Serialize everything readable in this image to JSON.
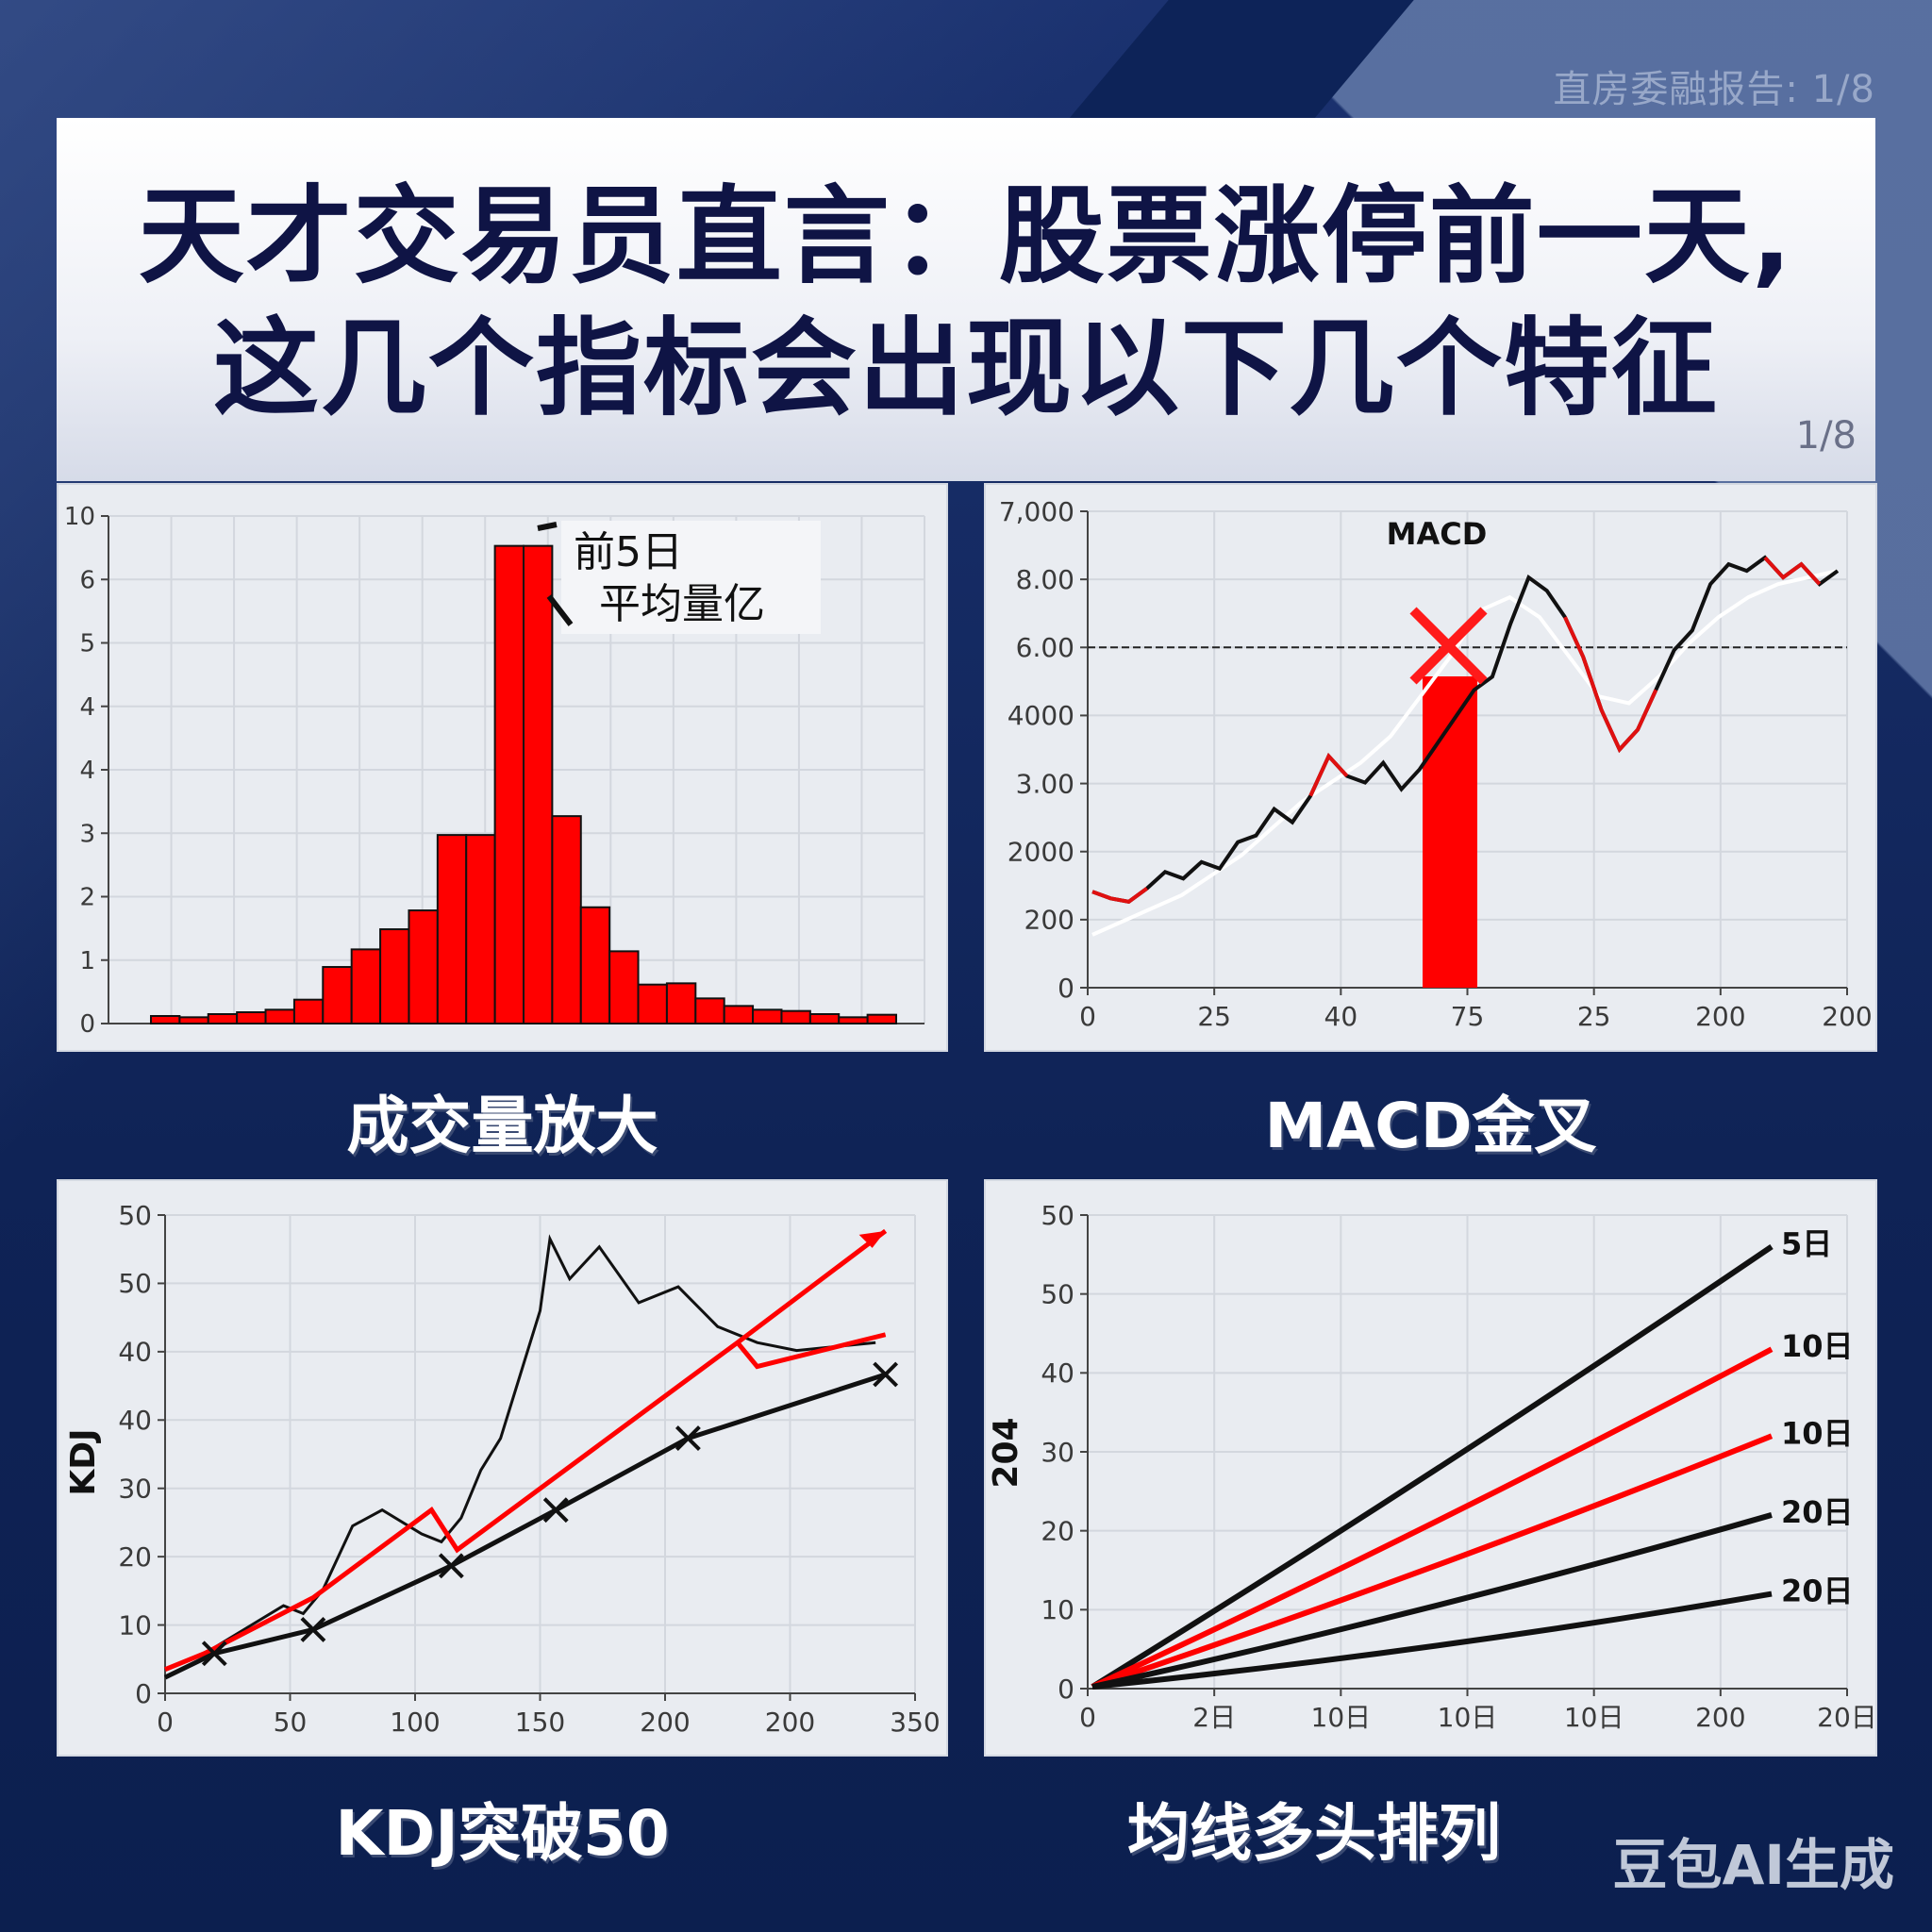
{
  "header": {
    "tag": "直房委融报告: 1/8",
    "title_line1": "天才交易员直言：股票涨停前一天,",
    "title_line2": "这几个指标会出现以下几个特征",
    "page": "1/8"
  },
  "captions": {
    "volume": "成交量放大",
    "macd": "MACD金叉",
    "kdj": "KDJ突破50",
    "ma": "均线多头排列"
  },
  "watermark": "豆包AI生成",
  "colors": {
    "background": "#14275a",
    "title": "#0f1445",
    "red": "#ff0000",
    "black": "#111111",
    "panel": "#e9ecf1"
  },
  "chart_data": [
    {
      "id": "volume",
      "type": "bar",
      "title": "成交量放大",
      "annotation": [
        "前5日",
        "平均量亿"
      ],
      "yticks": [
        "10",
        "6",
        "5",
        "4",
        "4",
        "3",
        "2",
        "1",
        "0"
      ],
      "ylim": [
        0,
        8
      ],
      "grid": true,
      "values": [
        0.12,
        0.1,
        0.15,
        0.18,
        0.22,
        0.38,
        0.9,
        1.18,
        1.5,
        1.8,
        3.0,
        3.0,
        7.6,
        7.6,
        3.3,
        1.85,
        1.15,
        0.62,
        0.64,
        0.4,
        0.28,
        0.22,
        0.2,
        0.15,
        0.1,
        0.14
      ],
      "bar_color": "#ff0000"
    },
    {
      "id": "macd",
      "type": "line",
      "title": "MACD",
      "yticks": [
        "7,000",
        "8.00",
        "6.00",
        "4000",
        "3.00",
        "2000",
        "200",
        "0"
      ],
      "xticks": [
        "0",
        "25",
        "40",
        "75",
        "25",
        "200",
        "200"
      ],
      "reference_line": "6.00",
      "highlight_bar": {
        "x_label": "75",
        "height_label": "≈4500",
        "color": "#ff0000"
      },
      "cross_marker": {
        "x_label": "75",
        "y_label": "6.00"
      },
      "price_series": [
        1450,
        1350,
        1300,
        1500,
        1750,
        1650,
        1900,
        1800,
        2200,
        2300,
        2700,
        2500,
        2900,
        3500,
        3200,
        3100,
        3400,
        3000,
        3300,
        3700,
        4100,
        4500,
        4700,
        5500,
        6200,
        6000,
        5600,
        5000,
        4200,
        3600,
        3900,
        4500,
        5100,
        5400,
        6100,
        6400,
        6300,
        6500,
        6200,
        6400,
        6100,
        6300
      ],
      "ma_series": [
        800,
        1000,
        1200,
        1400,
        1700,
        2000,
        2400,
        2800,
        3100,
        3400,
        3800,
        4400,
        5000,
        5700,
        5900,
        5600,
        5000,
        4400,
        4300,
        4700,
        5200,
        5600,
        5900,
        6100,
        6200,
        6300
      ]
    },
    {
      "id": "kdj",
      "type": "line",
      "title": "KDJ突破50",
      "ylabel": "KDJ",
      "yticks": [
        "50",
        "50",
        "40",
        "40",
        "30",
        "20",
        "10",
        "0"
      ],
      "xticks": [
        "0",
        "50",
        "100",
        "150",
        "200",
        "200",
        "350"
      ],
      "series": [
        {
          "name": "K (black noisy)",
          "color": "#111111",
          "points": [
            [
              0,
              3
            ],
            [
              20,
              5
            ],
            [
              40,
              8
            ],
            [
              60,
              11
            ],
            [
              70,
              10
            ],
            [
              80,
              13
            ],
            [
              95,
              21
            ],
            [
              110,
              23
            ],
            [
              130,
              20
            ],
            [
              140,
              19
            ],
            [
              150,
              22
            ],
            [
              160,
              28
            ],
            [
              170,
              32
            ],
            [
              180,
              40
            ],
            [
              190,
              48
            ],
            [
              195,
              57
            ],
            [
              205,
              52
            ],
            [
              220,
              56
            ],
            [
              240,
              49
            ],
            [
              260,
              51
            ],
            [
              280,
              46
            ],
            [
              300,
              44
            ],
            [
              320,
              43
            ],
            [
              360,
              44
            ]
          ]
        },
        {
          "name": "D (red arrow)",
          "color": "#ff0000",
          "points": [
            [
              0,
              3
            ],
            [
              20,
              5
            ],
            [
              75,
              12
            ],
            [
              135,
              23
            ],
            [
              148,
              18
            ],
            [
              290,
              44
            ],
            [
              365,
              58
            ]
          ]
        },
        {
          "name": "J (red)",
          "color": "#ff0000",
          "points": [
            [
              290,
              44
            ],
            [
              300,
              41
            ],
            [
              365,
              45
            ]
          ]
        },
        {
          "name": "baseline (black x-marked)",
          "color": "#111111",
          "points": [
            [
              0,
              2
            ],
            [
              25,
              5
            ],
            [
              75,
              8
            ],
            [
              145,
              16
            ],
            [
              198,
              23
            ],
            [
              265,
              32
            ],
            [
              365,
              40
            ]
          ]
        }
      ]
    },
    {
      "id": "ma",
      "type": "line",
      "title": "均线多头排列",
      "ylabel": "204",
      "yticks": [
        "50",
        "50",
        "40",
        "30",
        "20",
        "10",
        "0"
      ],
      "xticks": [
        "0",
        "2日",
        "10日",
        "10日",
        "10日",
        "200",
        "20日"
      ],
      "series": [
        {
          "name": "5日",
          "color": "#111111",
          "end": 56
        },
        {
          "name": "10日",
          "color": "#ff0000",
          "end": 43
        },
        {
          "name": "10日",
          "color": "#ff0000",
          "end": 32
        },
        {
          "name": "20日",
          "color": "#111111",
          "end": 22
        },
        {
          "name": "20日",
          "color": "#111111",
          "end": 12
        }
      ]
    }
  ]
}
